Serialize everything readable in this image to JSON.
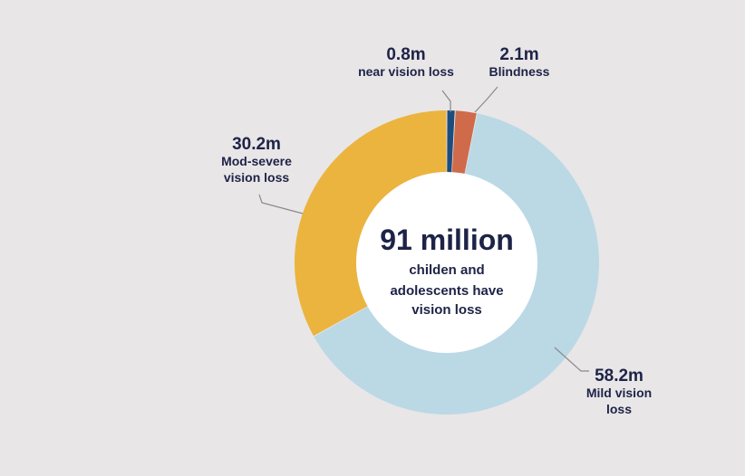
{
  "colors": {
    "background": "#e8e6e7",
    "text": "#1e2347",
    "leader": "#8a8a8a"
  },
  "chart_data": {
    "type": "pie",
    "variant": "donut",
    "center": {
      "value": "91 million",
      "lines": [
        "childen and",
        "adolescents have",
        "vision loss"
      ]
    },
    "slices": [
      {
        "value_label": "0.8m",
        "label_lines": [
          "near vision loss"
        ],
        "value": 0.8,
        "color": "#1c4d7f"
      },
      {
        "value_label": "2.1m",
        "label_lines": [
          "Blindness"
        ],
        "value": 2.1,
        "color": "#cf6b4a"
      },
      {
        "value_label": "58.2m",
        "label_lines": [
          "Mild vision",
          "loss"
        ],
        "value": 58.2,
        "color": "#bbd8e5"
      },
      {
        "value_label": "30.2m",
        "label_lines": [
          "Mod-severe",
          "vision loss"
        ],
        "value": 30.2,
        "color": "#ebb43f"
      }
    ]
  }
}
